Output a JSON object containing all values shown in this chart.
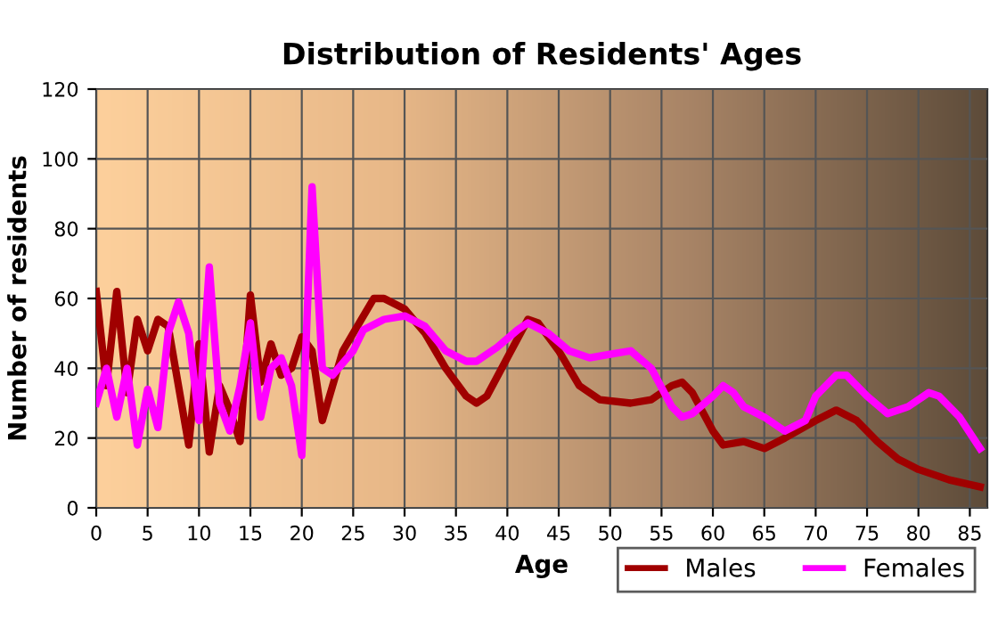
{
  "chart_data": {
    "type": "line",
    "title": "Distribution of Residents' Ages",
    "xlabel": "Age",
    "ylabel": "Number of residents",
    "xlim": [
      0,
      86.7
    ],
    "xticks": [
      0,
      5,
      10,
      15,
      20,
      25,
      30,
      35,
      40,
      45,
      50,
      55,
      60,
      65,
      70,
      75,
      80,
      85
    ],
    "ylim": [
      0,
      120
    ],
    "yticks": [
      0,
      20,
      40,
      60,
      80,
      100,
      120
    ],
    "grid": true,
    "legend": "bottom right",
    "marker": "none",
    "line_style": "solid",
    "series": [
      {
        "name": "Males",
        "color": "#a00000",
        "x": [
          0,
          1,
          2,
          3,
          4,
          5,
          6,
          7,
          8,
          9,
          10,
          11,
          12,
          13,
          14,
          15,
          16,
          17,
          18,
          19,
          20,
          21,
          22,
          23,
          24,
          25,
          27,
          28,
          30,
          32,
          34,
          36,
          37,
          38,
          40,
          42,
          43,
          45,
          47,
          49,
          52,
          54,
          56,
          57,
          58,
          60,
          61,
          63,
          65,
          67,
          70,
          72,
          74,
          76,
          78,
          80,
          83,
          86
        ],
        "values": [
          62,
          35,
          62,
          33,
          54,
          45,
          54,
          52,
          35,
          18,
          47,
          16,
          35,
          28,
          19,
          61,
          36,
          47,
          38,
          40,
          49,
          45,
          25,
          35,
          45,
          50,
          60,
          60,
          57,
          50,
          40,
          32,
          30,
          32,
          43,
          54,
          53,
          45,
          35,
          31,
          30,
          31,
          35,
          36,
          33,
          22,
          18,
          19,
          17,
          20,
          25,
          28,
          25,
          19,
          14,
          11,
          8,
          6
        ]
      },
      {
        "name": "Females",
        "color": "#ff00ff",
        "x": [
          0,
          1,
          2,
          3,
          4,
          5,
          6,
          7,
          8,
          9,
          10,
          11,
          12,
          13,
          14,
          15,
          16,
          17,
          18,
          19,
          20,
          21,
          22,
          23,
          25,
          26,
          28,
          30,
          32,
          34,
          36,
          37,
          39,
          41,
          42,
          44,
          46,
          48,
          50,
          52,
          54,
          56,
          57,
          58,
          60,
          61,
          62,
          63,
          65,
          67,
          69,
          70,
          72,
          73,
          75,
          77,
          79,
          81,
          82,
          84,
          86
        ],
        "values": [
          30,
          40,
          26,
          40,
          18,
          34,
          23,
          50,
          59,
          50,
          25,
          69,
          30,
          22,
          35,
          53,
          26,
          40,
          43,
          35,
          15,
          92,
          40,
          38,
          45,
          51,
          54,
          55,
          52,
          45,
          42,
          42,
          46,
          51,
          53,
          50,
          45,
          43,
          44,
          45,
          40,
          29,
          26,
          27,
          32,
          35,
          33,
          29,
          26,
          22,
          25,
          32,
          38,
          38,
          32,
          27,
          29,
          33,
          32,
          26,
          17
        ]
      }
    ]
  }
}
